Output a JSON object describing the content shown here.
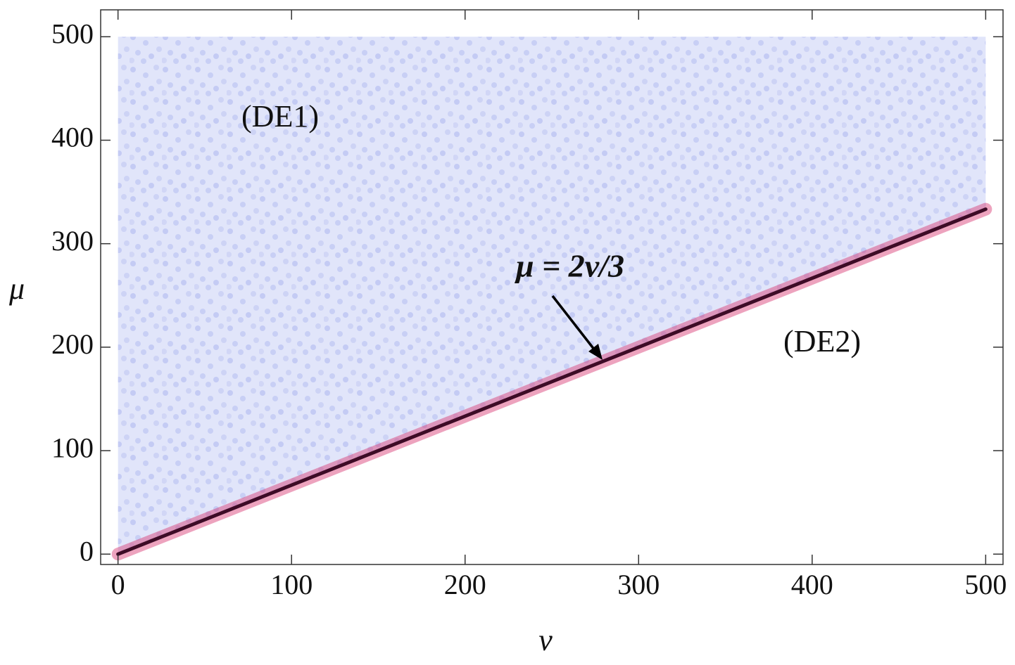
{
  "chart_data": {
    "type": "area",
    "xlabel": "ν",
    "ylabel": "μ",
    "xlim": [
      -10,
      510
    ],
    "ylim": [
      -10,
      526
    ],
    "xticks": [
      0,
      100,
      200,
      300,
      400,
      500
    ],
    "yticks": [
      0,
      100,
      200,
      300,
      400,
      500
    ],
    "region": {
      "x": [
        0,
        500
      ],
      "upper": [
        500,
        500
      ],
      "lower": [
        0,
        333.33
      ],
      "color": "#c9d0f6"
    },
    "boundary": {
      "x": [
        0,
        500
      ],
      "values": [
        0,
        333.33
      ],
      "color": "#3d0b26",
      "halo": "#d6336f"
    },
    "annotations": [
      {
        "text": "(DE1)"
      },
      {
        "text": "(DE2)"
      },
      {
        "text": "μ = 2ν/3"
      }
    ]
  }
}
